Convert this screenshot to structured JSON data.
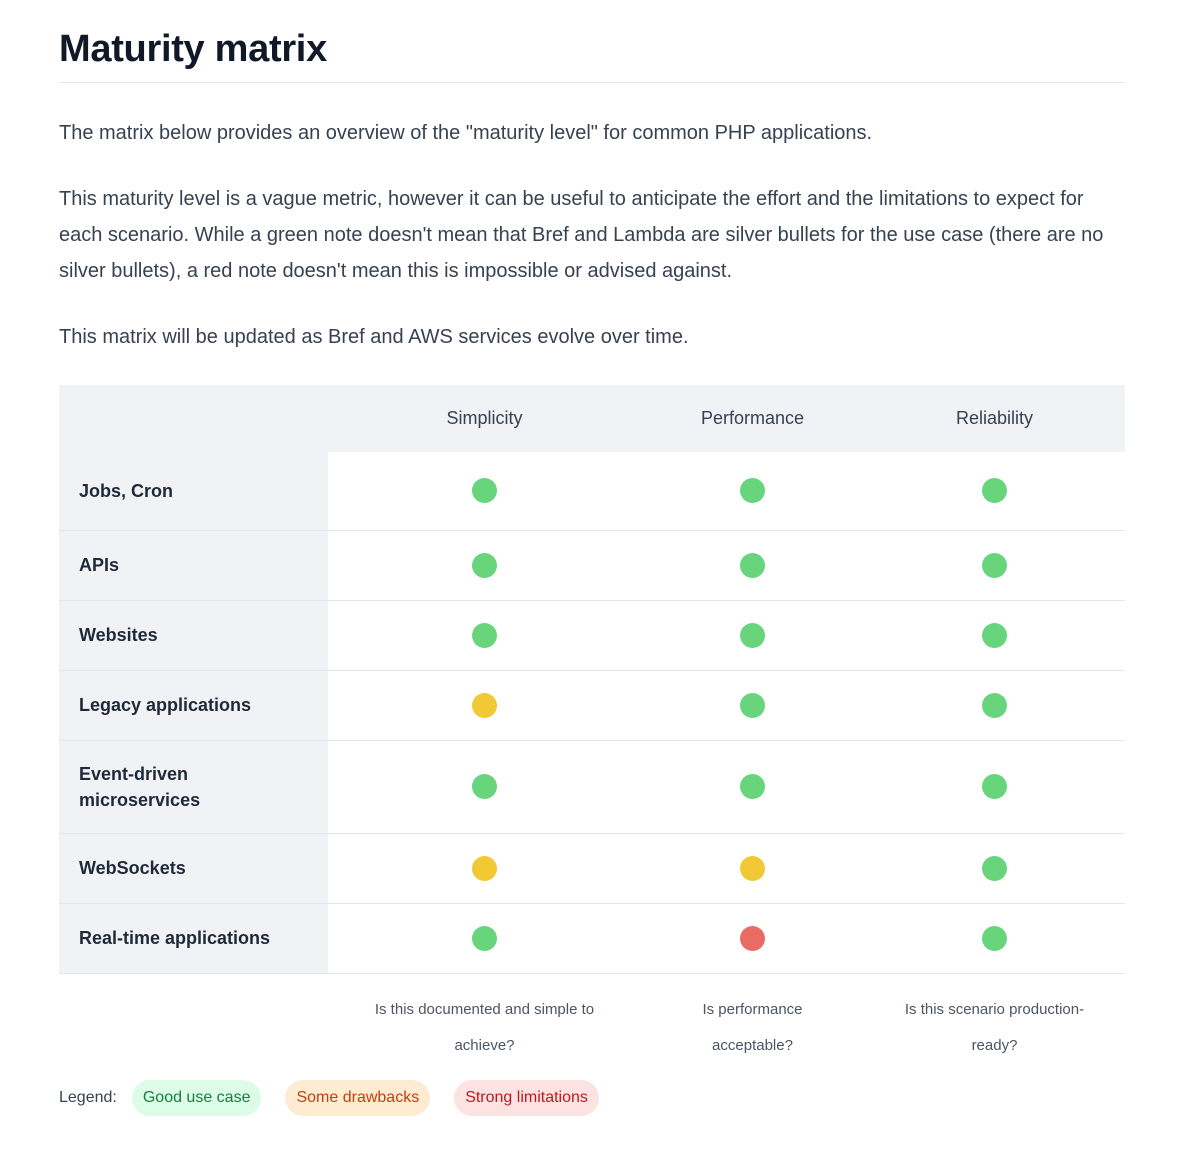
{
  "heading": "Maturity matrix",
  "paragraphs": [
    "The matrix below provides an overview of the \"maturity level\" for common PHP applications.",
    "This maturity level is a vague metric, however it can be useful to anticipate the effort and the limitations to expect for each scenario. While a green note doesn't mean that Bref and Lambda are silver bullets for the use case (there are no silver bullets), a red note doesn't mean this is impossible or advised against.",
    "This matrix will be updated as Bref and AWS services evolve over time."
  ],
  "matrix": {
    "columns": [
      "Simplicity",
      "Performance",
      "Reliability"
    ],
    "rows": [
      {
        "label": "Jobs, Cron",
        "ratings": [
          "good",
          "good",
          "good"
        ]
      },
      {
        "label": "APIs",
        "ratings": [
          "good",
          "good",
          "good"
        ]
      },
      {
        "label": "Websites",
        "ratings": [
          "good",
          "good",
          "good"
        ]
      },
      {
        "label": "Legacy applications",
        "ratings": [
          "drawbacks",
          "good",
          "good"
        ]
      },
      {
        "label": "Event-driven microservices",
        "ratings": [
          "good",
          "good",
          "good"
        ]
      },
      {
        "label": "WebSockets",
        "ratings": [
          "drawbacks",
          "drawbacks",
          "good"
        ]
      },
      {
        "label": "Real-time applications",
        "ratings": [
          "good",
          "limitations",
          "good"
        ]
      }
    ],
    "footnotes": [
      "Is this documented and simple to achieve?",
      "Is performance acceptable?",
      "Is this scenario production-ready?"
    ]
  },
  "legend": {
    "label": "Legend:",
    "items": [
      {
        "key": "good",
        "text": "Good use case"
      },
      {
        "key": "drawbacks",
        "text": "Some drawbacks"
      },
      {
        "key": "limitations",
        "text": "Strong limitations"
      }
    ]
  },
  "colors": {
    "good": "#68d57d",
    "drawbacks": "#f0c935",
    "limitations": "#ea6b64",
    "good_pill_bg": "#dcfce7",
    "good_pill_text": "#15803d",
    "drawbacks_pill_bg": "#fdebd2",
    "drawbacks_pill_text": "#c2410c",
    "limitations_pill_bg": "#fde2e2",
    "limitations_pill_text": "#b91c1c"
  }
}
